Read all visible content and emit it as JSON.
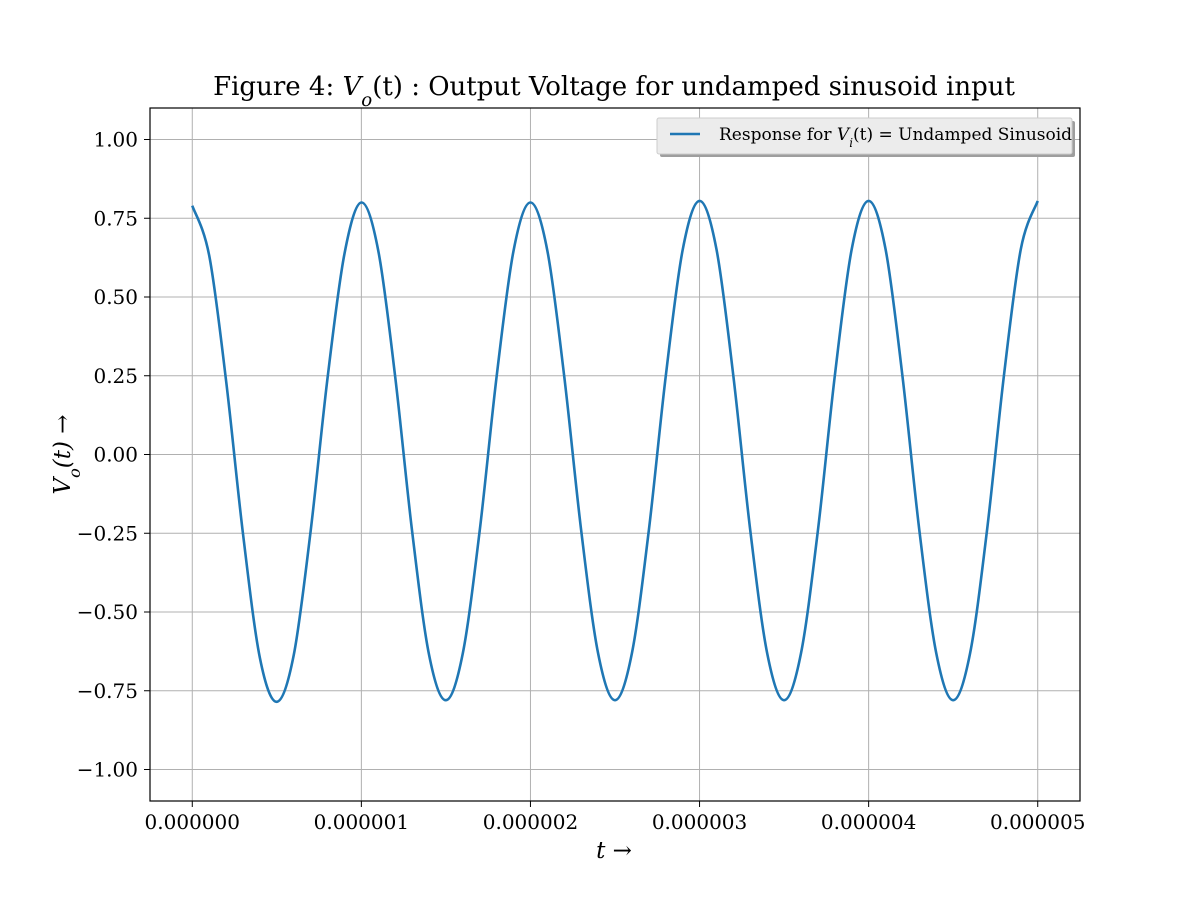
{
  "chart_data": {
    "type": "line",
    "title": "Figure 4: V_o(t) : Output Voltage for undamped sinusoid input",
    "xlabel": "t →",
    "ylabel": "V_o(t) →",
    "xlim": [
      -2.5e-07,
      5.25e-06
    ],
    "ylim": [
      -1.1,
      1.1
    ],
    "x_ticks": [
      0,
      1e-06,
      2e-06,
      3e-06,
      4e-06,
      5e-06
    ],
    "x_tick_labels": [
      "0.000000",
      "0.000001",
      "0.000002",
      "0.000003",
      "0.000004",
      "0.000005"
    ],
    "y_ticks": [
      -1.0,
      -0.75,
      -0.5,
      -0.25,
      0.0,
      0.25,
      0.5,
      0.75,
      1.0
    ],
    "y_tick_labels": [
      "−1.00",
      "−0.75",
      "−0.50",
      "−0.25",
      "0.00",
      "0.25",
      "0.50",
      "0.75",
      "1.00"
    ],
    "grid": true,
    "legend_position": "top-right",
    "series": [
      {
        "name": "Response for V_i(t) = Undamped Sinusoid",
        "color": "#1f77b4",
        "x": [
          0,
          1e-07,
          2e-07,
          3e-07,
          4e-07,
          5e-07,
          6e-07,
          7e-07,
          8e-07,
          9e-07,
          1e-06,
          1.1e-06,
          1.2e-06,
          1.3e-06,
          1.4e-06,
          1.5e-06,
          1.6e-06,
          1.7e-06,
          1.8e-06,
          1.9e-06,
          2e-06,
          2.1e-06,
          2.2e-06,
          2.3e-06,
          2.4e-06,
          2.5e-06,
          2.6e-06,
          2.7e-06,
          2.8e-06,
          2.9e-06,
          3e-06,
          3.1e-06,
          3.2e-06,
          3.3e-06,
          3.4e-06,
          3.5e-06,
          3.6e-06,
          3.7e-06,
          3.8e-06,
          3.9e-06,
          4e-06,
          4.1e-06,
          4.2e-06,
          4.3e-06,
          4.4e-06,
          4.5e-06,
          4.6e-06,
          4.7e-06,
          4.8e-06,
          4.9e-06,
          5e-06
        ],
        "y": [
          0.79,
          0.632,
          0.234,
          -0.252,
          -0.646,
          -0.785,
          -0.637,
          -0.243,
          0.243,
          0.637,
          0.8,
          0.647,
          0.247,
          -0.243,
          -0.635,
          -0.78,
          -0.631,
          -0.241,
          0.248,
          0.647,
          0.8,
          0.647,
          0.247,
          -0.241,
          -0.631,
          -0.78,
          -0.631,
          -0.241,
          0.248,
          0.649,
          0.805,
          0.652,
          0.249,
          -0.241,
          -0.631,
          -0.78,
          -0.631,
          -0.241,
          0.25,
          0.652,
          0.805,
          0.652,
          0.249,
          -0.241,
          -0.631,
          -0.78,
          -0.631,
          -0.241,
          0.25,
          0.652,
          0.805
        ]
      }
    ]
  }
}
